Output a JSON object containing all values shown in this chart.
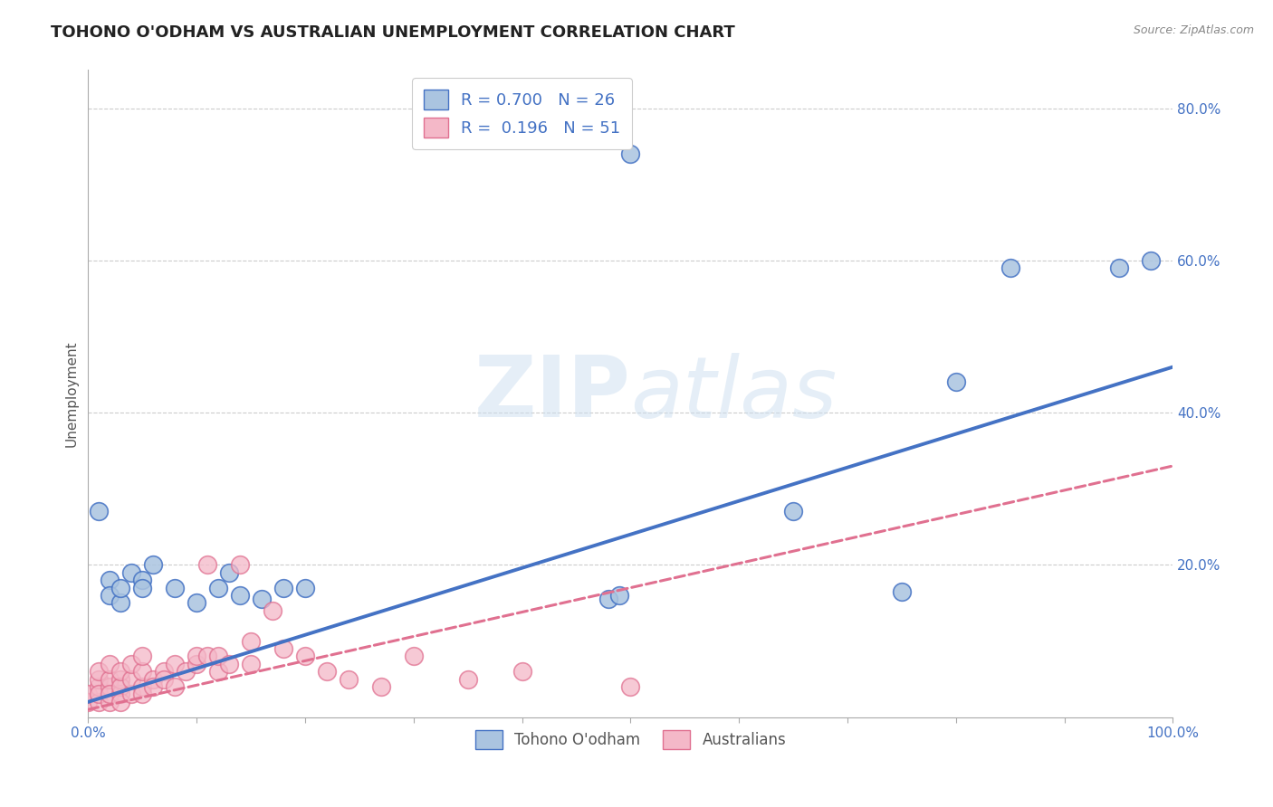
{
  "title": "TOHONO O'ODHAM VS AUSTRALIAN UNEMPLOYMENT CORRELATION CHART",
  "source": "Source: ZipAtlas.com",
  "ylabel": "Unemployment",
  "watermark": "ZIPatlas",
  "legend_entries": [
    {
      "label": "R = 0.700   N = 26",
      "face": "#aac4e0",
      "edge": "#4472c4"
    },
    {
      "label": "R =  0.196   N = 51",
      "face": "#f4b8c8",
      "edge": "#e07090"
    }
  ],
  "blue_scatter": [
    [
      0.01,
      0.27
    ],
    [
      0.02,
      0.18
    ],
    [
      0.02,
      0.16
    ],
    [
      0.03,
      0.15
    ],
    [
      0.03,
      0.17
    ],
    [
      0.04,
      0.19
    ],
    [
      0.05,
      0.18
    ],
    [
      0.05,
      0.17
    ],
    [
      0.06,
      0.2
    ],
    [
      0.08,
      0.17
    ],
    [
      0.1,
      0.15
    ],
    [
      0.12,
      0.17
    ],
    [
      0.13,
      0.19
    ],
    [
      0.14,
      0.16
    ],
    [
      0.16,
      0.155
    ],
    [
      0.18,
      0.17
    ],
    [
      0.2,
      0.17
    ],
    [
      0.48,
      0.155
    ],
    [
      0.49,
      0.16
    ],
    [
      0.5,
      0.74
    ],
    [
      0.65,
      0.27
    ],
    [
      0.75,
      0.165
    ],
    [
      0.8,
      0.44
    ],
    [
      0.85,
      0.59
    ],
    [
      0.95,
      0.59
    ],
    [
      0.98,
      0.6
    ]
  ],
  "pink_scatter": [
    [
      0.0,
      0.02
    ],
    [
      0.0,
      0.03
    ],
    [
      0.01,
      0.02
    ],
    [
      0.01,
      0.04
    ],
    [
      0.01,
      0.05
    ],
    [
      0.01,
      0.03
    ],
    [
      0.01,
      0.06
    ],
    [
      0.02,
      0.02
    ],
    [
      0.02,
      0.04
    ],
    [
      0.02,
      0.05
    ],
    [
      0.02,
      0.03
    ],
    [
      0.02,
      0.07
    ],
    [
      0.03,
      0.03
    ],
    [
      0.03,
      0.05
    ],
    [
      0.03,
      0.04
    ],
    [
      0.03,
      0.02
    ],
    [
      0.03,
      0.06
    ],
    [
      0.04,
      0.03
    ],
    [
      0.04,
      0.05
    ],
    [
      0.04,
      0.07
    ],
    [
      0.05,
      0.04
    ],
    [
      0.05,
      0.06
    ],
    [
      0.05,
      0.03
    ],
    [
      0.05,
      0.08
    ],
    [
      0.06,
      0.05
    ],
    [
      0.06,
      0.04
    ],
    [
      0.07,
      0.06
    ],
    [
      0.07,
      0.05
    ],
    [
      0.08,
      0.07
    ],
    [
      0.08,
      0.04
    ],
    [
      0.09,
      0.06
    ],
    [
      0.1,
      0.07
    ],
    [
      0.1,
      0.08
    ],
    [
      0.11,
      0.08
    ],
    [
      0.11,
      0.2
    ],
    [
      0.12,
      0.06
    ],
    [
      0.12,
      0.08
    ],
    [
      0.13,
      0.07
    ],
    [
      0.14,
      0.2
    ],
    [
      0.15,
      0.1
    ],
    [
      0.15,
      0.07
    ],
    [
      0.17,
      0.14
    ],
    [
      0.18,
      0.09
    ],
    [
      0.2,
      0.08
    ],
    [
      0.22,
      0.06
    ],
    [
      0.24,
      0.05
    ],
    [
      0.27,
      0.04
    ],
    [
      0.3,
      0.08
    ],
    [
      0.35,
      0.05
    ],
    [
      0.4,
      0.06
    ],
    [
      0.5,
      0.04
    ]
  ],
  "blue_line": [
    [
      0.0,
      0.02
    ],
    [
      1.0,
      0.46
    ]
  ],
  "pink_line": [
    [
      0.0,
      0.01
    ],
    [
      1.0,
      0.33
    ]
  ],
  "xlim": [
    0.0,
    1.0
  ],
  "ylim": [
    0.0,
    0.85
  ],
  "yticks": [
    0.0,
    0.2,
    0.4,
    0.6,
    0.8
  ],
  "ytick_labels": [
    "",
    "20.0%",
    "40.0%",
    "60.0%",
    "80.0%"
  ],
  "xtick_positions": [
    0.0,
    0.1,
    0.2,
    0.3,
    0.4,
    0.5,
    0.6,
    0.7,
    0.8,
    0.9,
    1.0
  ],
  "xtick_labels_bottom": [
    "0.0%",
    "",
    "",
    "",
    "",
    "",
    "",
    "",
    "",
    "",
    "100.0%"
  ],
  "grid_color": "#cccccc",
  "bg_color": "#ffffff",
  "scatter_blue_face": "#aac4e0",
  "scatter_blue_edge": "#4472c4",
  "scatter_pink_face": "#f4b8c8",
  "scatter_pink_edge": "#e07090",
  "line_blue": "#4472c4",
  "line_pink": "#e07090",
  "title_fontsize": 13,
  "axis_label_fontsize": 11,
  "tick_fontsize": 11,
  "tick_color": "#4472c4"
}
